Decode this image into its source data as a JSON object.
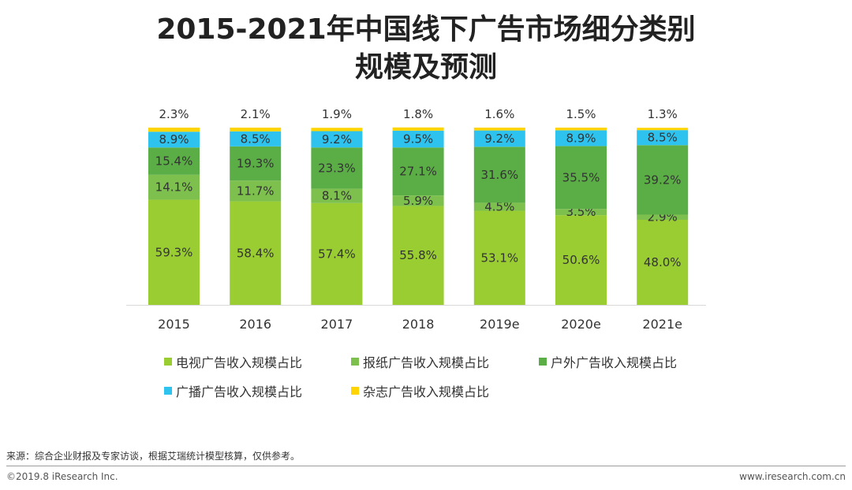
{
  "chart_data": {
    "type": "bar",
    "stacked": true,
    "title_line1": "2015-2021年中国线下广告市场细分类别",
    "title_line2": "规模及预测",
    "categories": [
      "2015",
      "2016",
      "2017",
      "2018",
      "2019e",
      "2020e",
      "2021e"
    ],
    "series": [
      {
        "name": "电视广告收入规模占比",
        "color": "#9ACD32",
        "values": [
          59.3,
          58.4,
          57.4,
          55.8,
          53.1,
          50.6,
          48.0
        ],
        "labels": [
          "59.3%",
          "58.4%",
          "57.4%",
          "55.8%",
          "53.1%",
          "50.6%",
          "48.0%"
        ]
      },
      {
        "name": "报纸广告收入规模占比",
        "color": "#7DC04E",
        "values": [
          14.1,
          11.7,
          8.1,
          5.9,
          4.5,
          3.5,
          2.9
        ],
        "labels": [
          "14.1%",
          "11.7%",
          "8.1%",
          "5.9%",
          "4.5%",
          "3.5%",
          "2.9%"
        ]
      },
      {
        "name": "户外广告收入规模占比",
        "color": "#5BAE46",
        "values": [
          15.4,
          19.3,
          23.3,
          27.1,
          31.6,
          35.5,
          39.2
        ],
        "labels": [
          "15.4%",
          "19.3%",
          "23.3%",
          "27.1%",
          "31.6%",
          "35.5%",
          "39.2%"
        ]
      },
      {
        "name": "广播广告收入规模占比",
        "color": "#2EC3EE",
        "values": [
          8.9,
          8.5,
          9.2,
          9.5,
          9.2,
          8.9,
          8.5
        ],
        "labels": [
          "8.9%",
          "8.5%",
          "9.2%",
          "9.5%",
          "9.2%",
          "8.9%",
          "8.5%"
        ]
      },
      {
        "name": "杂志广告收入规模占比",
        "color": "#FFD400",
        "values": [
          2.3,
          2.1,
          1.9,
          1.8,
          1.6,
          1.5,
          1.3
        ],
        "labels": [
          "2.3%",
          "2.1%",
          "1.9%",
          "1.8%",
          "1.6%",
          "1.5%",
          "1.3%"
        ]
      }
    ],
    "ylim": [
      0,
      100
    ],
    "xlabel": "",
    "ylabel": "",
    "legend_position": "bottom"
  },
  "footer": {
    "source": "来源：综合企业财报及专家访谈，根据艾瑞统计模型核算，仅供参考。",
    "copyright": "©2019.8 iResearch Inc.",
    "website": "www.iresearch.com.cn"
  }
}
